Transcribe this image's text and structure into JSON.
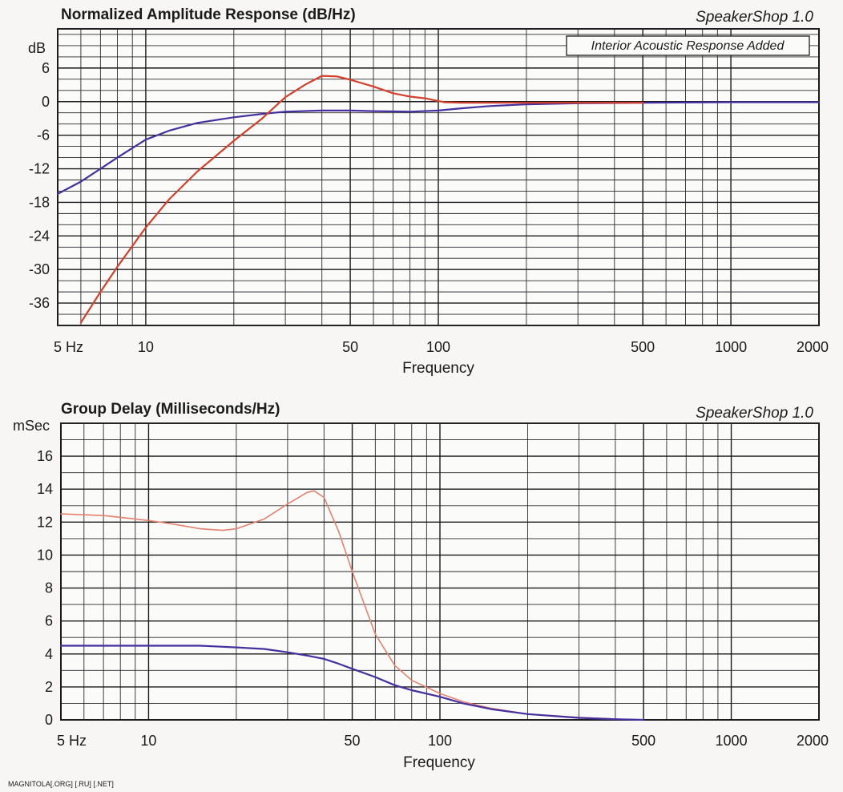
{
  "chart_data": [
    {
      "type": "line",
      "title": "Normalized Amplitude Response (dB/Hz)",
      "brand": "SpeakerShop 1.0",
      "annotation": "Interior Acoustic Response Added",
      "xlabel": "Frequency",
      "ylabel": "dB",
      "x_scale": "log",
      "xlim": [
        5,
        2000
      ],
      "ylim": [
        -40,
        13
      ],
      "x_ticks": [
        {
          "value": 5,
          "label": "5 Hz"
        },
        {
          "value": 10,
          "label": "10"
        },
        {
          "value": 50,
          "label": "50"
        },
        {
          "value": 100,
          "label": "100"
        },
        {
          "value": 500,
          "label": "500"
        },
        {
          "value": 1000,
          "label": "1000"
        },
        {
          "value": 2000,
          "label": "2000"
        }
      ],
      "y_ticks": [
        {
          "value": 6,
          "label": "6"
        },
        {
          "value": 0,
          "label": "0"
        },
        {
          "value": -6,
          "label": "-6"
        },
        {
          "value": -12,
          "label": "-12"
        },
        {
          "value": -18,
          "label": "-18"
        },
        {
          "value": -24,
          "label": "-24"
        },
        {
          "value": -30,
          "label": "-30"
        },
        {
          "value": -36,
          "label": "-36"
        }
      ],
      "grid": true,
      "series": [
        {
          "color": "#4530a0",
          "x": [
            5,
            6,
            7,
            8,
            9,
            10,
            12,
            15,
            20,
            25,
            30,
            40,
            50,
            60,
            80,
            100,
            120,
            150,
            200,
            300,
            500,
            1000,
            2000
          ],
          "y": [
            -16.5,
            -14.3,
            -12.0,
            -10.0,
            -8.3,
            -6.8,
            -5.2,
            -3.8,
            -2.8,
            -2.2,
            -1.8,
            -1.6,
            -1.6,
            -1.7,
            -1.8,
            -1.6,
            -1.2,
            -0.8,
            -0.5,
            -0.3,
            -0.2,
            -0.1,
            -0.1
          ]
        },
        {
          "color": "#d63f2c",
          "x": [
            6,
            7,
            8,
            9,
            10,
            12,
            15,
            20,
            25,
            30,
            35,
            40,
            45,
            50,
            60,
            70,
            80,
            90,
            100,
            105,
            120,
            150,
            200,
            300,
            500
          ],
          "y": [
            -39.5,
            -34.0,
            -29.5,
            -25.8,
            -22.5,
            -17.5,
            -12.5,
            -7.0,
            -3.0,
            0.8,
            3.0,
            4.6,
            4.5,
            3.9,
            2.7,
            1.5,
            0.9,
            0.6,
            0.1,
            -0.1,
            -0.2,
            -0.2,
            -0.2,
            -0.2,
            -0.2
          ]
        }
      ]
    },
    {
      "type": "line",
      "title": "Group Delay (Milliseconds/Hz)",
      "brand": "SpeakerShop 1.0",
      "xlabel": "Frequency",
      "ylabel": "mSec",
      "x_scale": "log",
      "xlim": [
        5,
        2000
      ],
      "ylim": [
        0,
        18
      ],
      "x_ticks": [
        {
          "value": 5,
          "label": "5 Hz"
        },
        {
          "value": 10,
          "label": "10"
        },
        {
          "value": 50,
          "label": "50"
        },
        {
          "value": 100,
          "label": "100"
        },
        {
          "value": 500,
          "label": "500"
        },
        {
          "value": 1000,
          "label": "1000"
        },
        {
          "value": 2000,
          "label": "2000"
        }
      ],
      "y_ticks": [
        {
          "value": 16,
          "label": "16"
        },
        {
          "value": 14,
          "label": "14"
        },
        {
          "value": 12,
          "label": "12"
        },
        {
          "value": 10,
          "label": "10"
        },
        {
          "value": 8,
          "label": "8"
        },
        {
          "value": 6,
          "label": "6"
        },
        {
          "value": 4,
          "label": "4"
        },
        {
          "value": 2,
          "label": "2"
        },
        {
          "value": 0,
          "label": "0"
        }
      ],
      "grid": true,
      "series": [
        {
          "color": "#e5826f",
          "x": [
            5,
            7,
            10,
            12,
            15,
            18,
            20,
            25,
            30,
            35,
            37,
            40,
            45,
            50,
            60,
            70,
            80,
            100,
            120,
            150,
            200,
            300,
            400,
            500
          ],
          "y": [
            12.5,
            12.4,
            12.1,
            11.9,
            11.6,
            11.5,
            11.6,
            12.2,
            13.1,
            13.8,
            13.9,
            13.5,
            11.4,
            9.0,
            5.2,
            3.3,
            2.4,
            1.6,
            1.1,
            0.7,
            0.35,
            0.15,
            0.05,
            0
          ]
        },
        {
          "color": "#4530a0",
          "x": [
            5,
            7,
            10,
            12,
            15,
            20,
            25,
            30,
            35,
            40,
            45,
            50,
            60,
            70,
            80,
            100,
            120,
            150,
            200,
            300,
            400,
            500
          ],
          "y": [
            4.5,
            4.5,
            4.5,
            4.5,
            4.5,
            4.4,
            4.3,
            4.1,
            3.9,
            3.7,
            3.4,
            3.1,
            2.6,
            2.1,
            1.8,
            1.4,
            1.0,
            0.65,
            0.35,
            0.12,
            0.04,
            0
          ]
        }
      ]
    }
  ],
  "footer": "MAGNITOLA[.ORG] [.RU] [.NET]"
}
